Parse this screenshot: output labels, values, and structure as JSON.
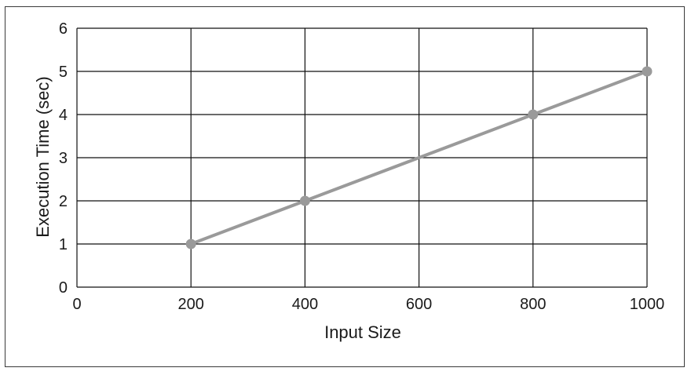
{
  "chart_data": {
    "type": "line",
    "title": "",
    "xlabel": "Input Size",
    "ylabel": "Execution Time (sec)",
    "x": [
      200,
      400,
      800,
      1000
    ],
    "series": [
      {
        "values": [
          1,
          2,
          4,
          5
        ]
      }
    ],
    "xlim": [
      0,
      1000
    ],
    "ylim": [
      0,
      6
    ],
    "xticks": [
      "0",
      "200",
      "400",
      "600",
      "800",
      "1000"
    ],
    "yticks": [
      "0",
      "1",
      "2",
      "3",
      "4",
      "5",
      "6"
    ],
    "grid": true,
    "legend": "none",
    "colors": {
      "line": "#9a9a9a",
      "marker": "#9a9a9a",
      "grid": "#111111",
      "frame": "#3a3a3a"
    }
  }
}
